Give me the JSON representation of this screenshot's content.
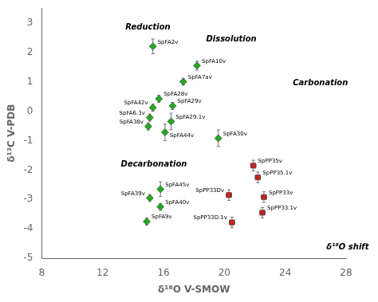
{
  "chart_data": {
    "type": "scatter",
    "x_label": "δ¹⁸O V-SMOW",
    "y_label": "δ¹³C V-PDB",
    "xlim": [
      8,
      28
    ],
    "ylim": [
      -5,
      3.5
    ],
    "xticks": [
      8,
      12,
      16,
      20,
      24,
      28
    ],
    "yticks": [
      -5,
      -4,
      -3,
      -2,
      -1,
      0,
      1,
      2,
      3
    ],
    "grid": false,
    "series": [
      {
        "color": "#22aa22",
        "marker": "diamond",
        "x": [
          15.3,
          18.2,
          17.3,
          15.7,
          15.3,
          16.6,
          15.1,
          16.5,
          15.0,
          16.1,
          19.6,
          15.8,
          15.1,
          15.8,
          14.9
        ],
        "y": [
          2.2,
          1.55,
          1.0,
          0.42,
          0.12,
          0.18,
          -0.22,
          -0.35,
          -0.52,
          -0.72,
          -0.92,
          -2.65,
          -2.95,
          -3.25,
          -3.75
        ],
        "xerr": [
          0.12,
          0.12,
          0.12,
          0.12,
          0.12,
          0.12,
          0.12,
          0.12,
          0.12,
          0.12,
          0.12,
          0.12,
          0.12,
          0.12,
          0.12
        ],
        "yerr": [
          0.25,
          0.15,
          0.12,
          0.12,
          0.12,
          0.12,
          0.12,
          0.28,
          0.12,
          0.28,
          0.28,
          0.25,
          0.12,
          0.12,
          0.12
        ],
        "labels": [
          "SpFA2v",
          "SpFA10v",
          "SpFA7av",
          "SpFA28v",
          "SpFA42v",
          "SpFA29v",
          "SpFA6.3v",
          "SpFA29.1v",
          "SpFA38v",
          "SpFA44v",
          "SpFA30v",
          "SpFA45v",
          "SpFA39v",
          "SpFA40v",
          "SpFA9v"
        ]
      },
      {
        "color": "#cc2222",
        "marker": "square",
        "x": [
          21.9,
          22.2,
          20.3,
          22.6,
          22.5,
          20.5
        ],
        "y": [
          -1.85,
          -2.25,
          -2.85,
          -2.92,
          -3.45,
          -3.78
        ],
        "xerr": [
          0.18,
          0.18,
          0.18,
          0.18,
          0.18,
          0.18
        ],
        "yerr": [
          0.18,
          0.18,
          0.18,
          0.18,
          0.18,
          0.18
        ],
        "labels": [
          "SpPP35v",
          "SpPP35.1v",
          "SpPP33Dv",
          "SpPP33v",
          "SpPP33.1v",
          "SpPP33D.1v"
        ]
      }
    ],
    "annotations": [
      {
        "text": "Reduction",
        "x": 13.5,
        "y": 2.85
      },
      {
        "text": "Dissolution",
        "x": 18.8,
        "y": 2.45
      },
      {
        "text": "Carbonation",
        "x": 24.5,
        "y": 0.95
      },
      {
        "text": "Decarbonation",
        "x": 13.2,
        "y": -1.8
      },
      {
        "text": "δ¹⁸O shift",
        "x": 26.7,
        "y": -4.62
      }
    ]
  }
}
